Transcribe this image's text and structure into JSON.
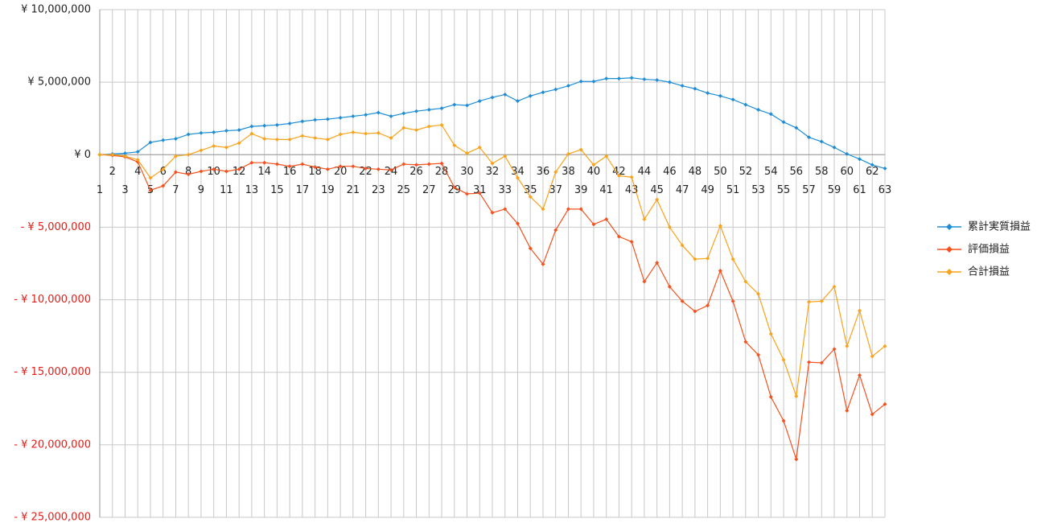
{
  "chart_data": {
    "type": "line",
    "categories": [
      1,
      2,
      3,
      4,
      5,
      6,
      7,
      8,
      9,
      10,
      11,
      12,
      13,
      14,
      15,
      16,
      17,
      18,
      19,
      20,
      21,
      22,
      23,
      24,
      25,
      26,
      27,
      28,
      29,
      30,
      31,
      32,
      33,
      34,
      35,
      36,
      37,
      38,
      39,
      40,
      41,
      42,
      43,
      44,
      45,
      46,
      47,
      48,
      49,
      50,
      51,
      52,
      53,
      54,
      55,
      56,
      57,
      58,
      59,
      60,
      61,
      62,
      63
    ],
    "series": [
      {
        "name": "累計実質損益",
        "color": "#1f8dd6",
        "values": [
          0,
          50000,
          100000,
          200000,
          850000,
          1000000,
          1100000,
          1400000,
          1500000,
          1550000,
          1650000,
          1700000,
          1950000,
          2000000,
          2050000,
          2150000,
          2300000,
          2400000,
          2450000,
          2550000,
          2650000,
          2750000,
          2900000,
          2650000,
          2850000,
          3000000,
          3100000,
          3200000,
          3450000,
          3400000,
          3700000,
          3950000,
          4150000,
          3700000,
          4050000,
          4300000,
          4500000,
          4750000,
          5050000,
          5050000,
          5250000,
          5250000,
          5300000,
          5200000,
          5150000,
          5000000,
          4750000,
          4550000,
          4250000,
          4050000,
          3800000,
          3450000,
          3100000,
          2800000,
          2250000,
          1850000,
          1200000,
          900000,
          500000,
          50000,
          -300000,
          -700000,
          -950000
        ]
      },
      {
        "name": "評価損益",
        "color": "#f4511e",
        "values": [
          0,
          -50000,
          -150000,
          -500000,
          -2450000,
          -2150000,
          -1200000,
          -1350000,
          -1150000,
          -1000000,
          -1150000,
          -1000000,
          -550000,
          -550000,
          -650000,
          -800000,
          -650000,
          -850000,
          -1000000,
          -800000,
          -800000,
          -950000,
          -1000000,
          -1050000,
          -650000,
          -700000,
          -650000,
          -600000,
          -2250000,
          -2700000,
          -2650000,
          -4000000,
          -3750000,
          -4750000,
          -6450000,
          -7550000,
          -5200000,
          -3750000,
          -3750000,
          -4800000,
          -4450000,
          -5650000,
          -6000000,
          -8750000,
          -7450000,
          -9100000,
          -10100000,
          -10800000,
          -10400000,
          -8000000,
          -10100000,
          -12900000,
          -13800000,
          -16700000,
          -18350000,
          -21000000,
          -14300000,
          -14350000,
          -13400000,
          -17650000,
          -15200000,
          -17900000,
          -17200000
        ]
      },
      {
        "name": "合計損益",
        "color": "#f9a21b",
        "values": [
          0,
          0,
          -100000,
          -350000,
          -1600000,
          -1000000,
          -100000,
          0,
          300000,
          600000,
          500000,
          800000,
          1450000,
          1100000,
          1050000,
          1050000,
          1300000,
          1150000,
          1050000,
          1400000,
          1550000,
          1450000,
          1500000,
          1150000,
          1850000,
          1700000,
          1950000,
          2050000,
          650000,
          100000,
          500000,
          -600000,
          -100000,
          -1600000,
          -2900000,
          -3750000,
          -1200000,
          50000,
          350000,
          -700000,
          -100000,
          -1450000,
          -1550000,
          -4450000,
          -3100000,
          -5000000,
          -6250000,
          -7200000,
          -7150000,
          -4900000,
          -7200000,
          -8750000,
          -9600000,
          -12350000,
          -14150000,
          -16650000,
          -10150000,
          -10100000,
          -9100000,
          -13200000,
          -10750000,
          -13900000,
          -13200000
        ]
      }
    ],
    "ylim": [
      -25000000,
      10000000
    ],
    "yticks": [
      {
        "value": -25000000,
        "label": "- ¥ 25,000,000"
      },
      {
        "value": -20000000,
        "label": "- ¥ 20,000,000"
      },
      {
        "value": -15000000,
        "label": "- ¥ 15,000,000"
      },
      {
        "value": -10000000,
        "label": "- ¥ 10,000,000"
      },
      {
        "value": -5000000,
        "label": "- ¥ 5,000,000"
      },
      {
        "value": 0,
        "label": "¥ 0"
      },
      {
        "value": 5000000,
        "label": "¥ 5,000,000"
      },
      {
        "value": 10000000,
        "label": "¥ 10,000,000"
      }
    ],
    "negative_tick_label_color": "#e0201b",
    "grid": true,
    "legend": "right"
  }
}
